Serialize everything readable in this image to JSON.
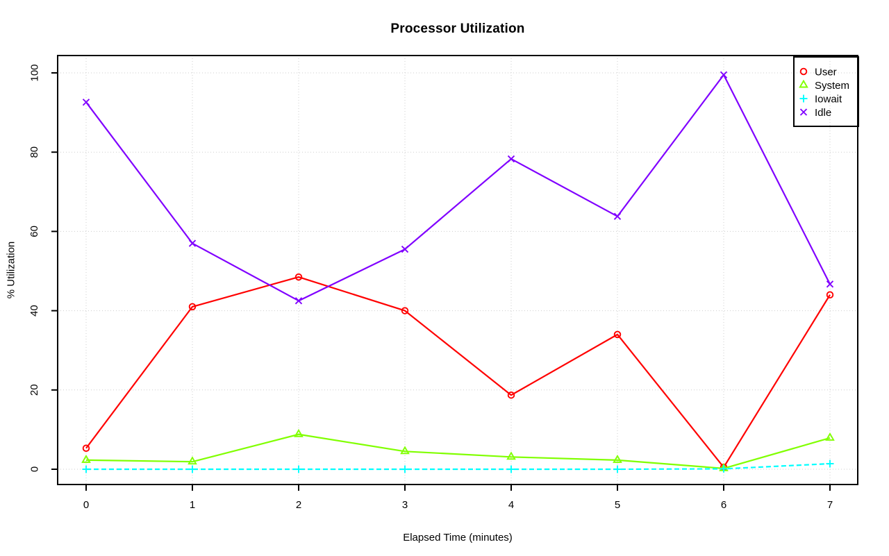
{
  "chart_data": {
    "type": "line",
    "title": "Processor Utilization",
    "xlabel": "Elapsed Time (minutes)",
    "ylabel": "% Utilization",
    "x": [
      0,
      1,
      2,
      3,
      4,
      5,
      6,
      7
    ],
    "xticks": [
      0,
      1,
      2,
      3,
      4,
      5,
      6,
      7
    ],
    "yticks": [
      0,
      20,
      40,
      60,
      80,
      100
    ],
    "xlim": [
      -0.28,
      7.28
    ],
    "ylim": [
      0,
      100
    ],
    "grid": "dotted",
    "grid_color": "#cdcdcd",
    "axis_color": "#000000",
    "legend_position": "top-right",
    "series": [
      {
        "name": "User",
        "color": "#FF0000",
        "marker": "circle",
        "line_style": "solid",
        "values": [
          5.3,
          41,
          48.5,
          40,
          18.7,
          34,
          0.5,
          44
        ]
      },
      {
        "name": "System",
        "color": "#80FF00",
        "marker": "triangle",
        "line_style": "solid",
        "values": [
          2.3,
          1.9,
          8.8,
          4.5,
          3.1,
          2.3,
          0.2,
          7.9
        ]
      },
      {
        "name": "Iowait",
        "color": "#00FFFF",
        "marker": "plus",
        "line_style": "dashed",
        "values": [
          0,
          0,
          0,
          0,
          0,
          0,
          0.1,
          1.4
        ]
      },
      {
        "name": "Idle",
        "color": "#8000FF",
        "marker": "x",
        "line_style": "solid",
        "values": [
          92.6,
          57,
          42.5,
          55.5,
          78.3,
          63.8,
          99.5,
          46.7
        ]
      }
    ]
  }
}
